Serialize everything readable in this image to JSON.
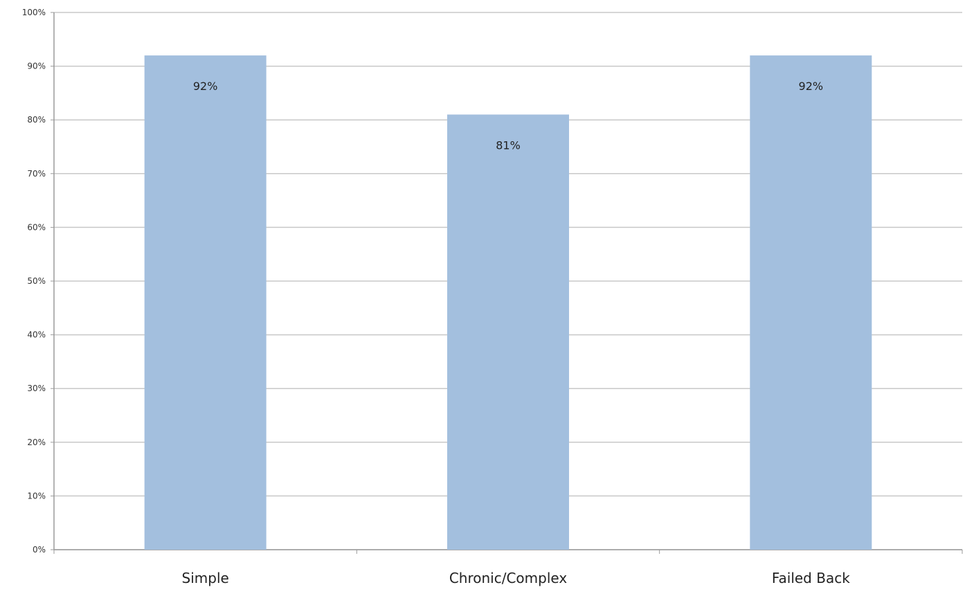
{
  "chart_data": {
    "type": "bar",
    "title": "",
    "xlabel": "",
    "ylabel": "",
    "categories": [
      "Simple",
      "Chronic/Complex",
      "Failed Back"
    ],
    "values": [
      92,
      81,
      92
    ],
    "data_labels": [
      "92%",
      "81%",
      "92%"
    ],
    "ylim": [
      0,
      100
    ],
    "y_ticks": [
      0,
      10,
      20,
      30,
      40,
      50,
      60,
      70,
      80,
      90,
      100
    ],
    "y_tick_labels": [
      "0%",
      "10%",
      "20%",
      "30%",
      "40%",
      "50%",
      "60%",
      "70%",
      "80%",
      "90%",
      "100%"
    ],
    "grid": true,
    "legend": "none",
    "bar_color": "#a3bfde",
    "grid_color": "#c8c8c8"
  }
}
